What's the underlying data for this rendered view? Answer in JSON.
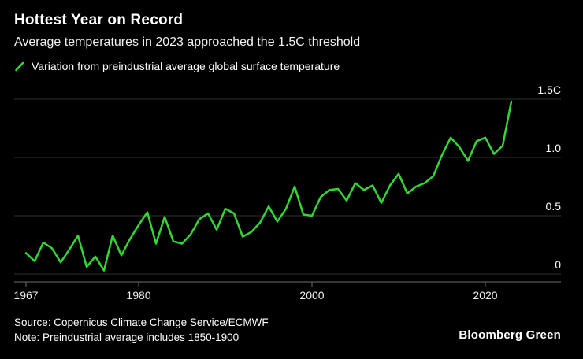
{
  "header": {
    "title": "Hottest Year on Record",
    "subtitle": "Average temperatures in 2023 approached the 1.5C threshold"
  },
  "legend": {
    "label": "Variation from preindustrial average global surface temperature",
    "color": "#33d633"
  },
  "footer": {
    "source": "Source: Copernicus Climate Change Service/ECMWF",
    "note": "Note: Preindustrial average includes 1850-1900",
    "brand": "Bloomberg Green"
  },
  "chart_data": {
    "type": "line",
    "title": "Hottest Year on Record",
    "subtitle": "Average temperatures in 2023 approached the 1.5C threshold",
    "series_name": "Variation from preindustrial average global surface temperature",
    "line_color": "#33d633",
    "grid": "horizontal",
    "legend_position": "top-left",
    "xlim": [
      1967,
      2023
    ],
    "ylim": [
      0,
      1.5
    ],
    "x_ticks": [
      1967,
      1980,
      2000,
      2020
    ],
    "y_ticks": [
      {
        "value": 0,
        "label": "0"
      },
      {
        "value": 0.5,
        "label": "0.5"
      },
      {
        "value": 1.0,
        "label": "1.0"
      },
      {
        "value": 1.5,
        "label": "1.5C"
      }
    ],
    "x": [
      1967,
      1968,
      1969,
      1970,
      1971,
      1972,
      1973,
      1974,
      1975,
      1976,
      1977,
      1978,
      1979,
      1980,
      1981,
      1982,
      1983,
      1984,
      1985,
      1986,
      1987,
      1988,
      1989,
      1990,
      1991,
      1992,
      1993,
      1994,
      1995,
      1996,
      1997,
      1998,
      1999,
      2000,
      2001,
      2002,
      2003,
      2004,
      2005,
      2006,
      2007,
      2008,
      2009,
      2010,
      2011,
      2012,
      2013,
      2014,
      2015,
      2016,
      2017,
      2018,
      2019,
      2020,
      2021,
      2022,
      2023
    ],
    "values": [
      0.18,
      0.11,
      0.27,
      0.22,
      0.1,
      0.21,
      0.33,
      0.06,
      0.15,
      0.03,
      0.33,
      0.16,
      0.3,
      0.42,
      0.53,
      0.26,
      0.49,
      0.28,
      0.26,
      0.34,
      0.47,
      0.52,
      0.38,
      0.56,
      0.52,
      0.32,
      0.36,
      0.44,
      0.58,
      0.45,
      0.56,
      0.75,
      0.51,
      0.5,
      0.66,
      0.72,
      0.73,
      0.63,
      0.78,
      0.72,
      0.76,
      0.61,
      0.76,
      0.86,
      0.69,
      0.75,
      0.78,
      0.84,
      1.02,
      1.17,
      1.09,
      0.97,
      1.14,
      1.17,
      1.03,
      1.1,
      1.48
    ]
  }
}
